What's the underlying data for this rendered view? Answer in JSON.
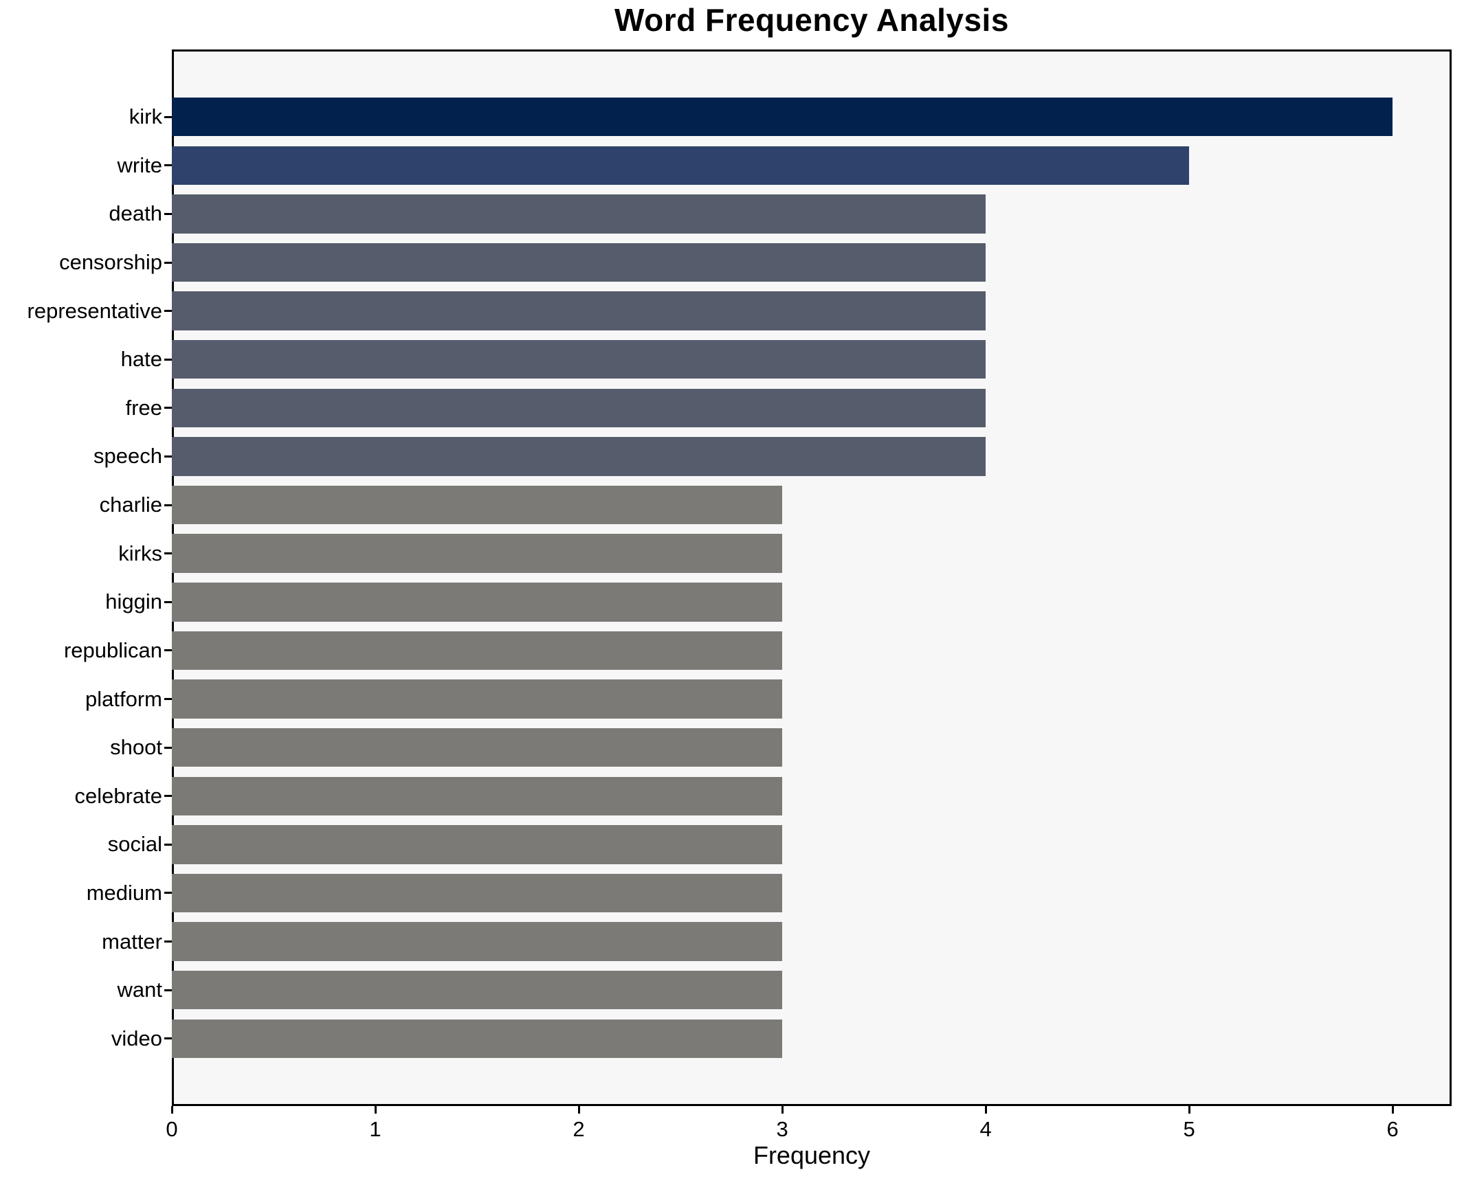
{
  "chart_data": {
    "type": "bar",
    "orientation": "horizontal",
    "title": "Word Frequency Analysis",
    "xlabel": "Frequency",
    "ylabel": "",
    "categories": [
      "kirk",
      "write",
      "death",
      "censorship",
      "representative",
      "hate",
      "free",
      "speech",
      "charlie",
      "kirks",
      "higgin",
      "republican",
      "platform",
      "shoot",
      "celebrate",
      "social",
      "medium",
      "matter",
      "want",
      "video"
    ],
    "values": [
      6,
      5,
      4,
      4,
      4,
      4,
      4,
      4,
      3,
      3,
      3,
      3,
      3,
      3,
      3,
      3,
      3,
      3,
      3,
      3
    ],
    "xticks": [
      "0",
      "1",
      "2",
      "3",
      "4",
      "5",
      "6"
    ],
    "xlim": [
      0,
      6.29
    ],
    "grid": false,
    "legend": null,
    "colors": {
      "bar_value_6": "#02214d",
      "bar_value_5": "#2e426b",
      "bar_value_4": "#565c6c",
      "bar_value_3": "#7b7a76",
      "plot_background": "#f7f7f7",
      "figure_background": "#ffffff",
      "axis": "#000000",
      "text": "#000000"
    }
  }
}
